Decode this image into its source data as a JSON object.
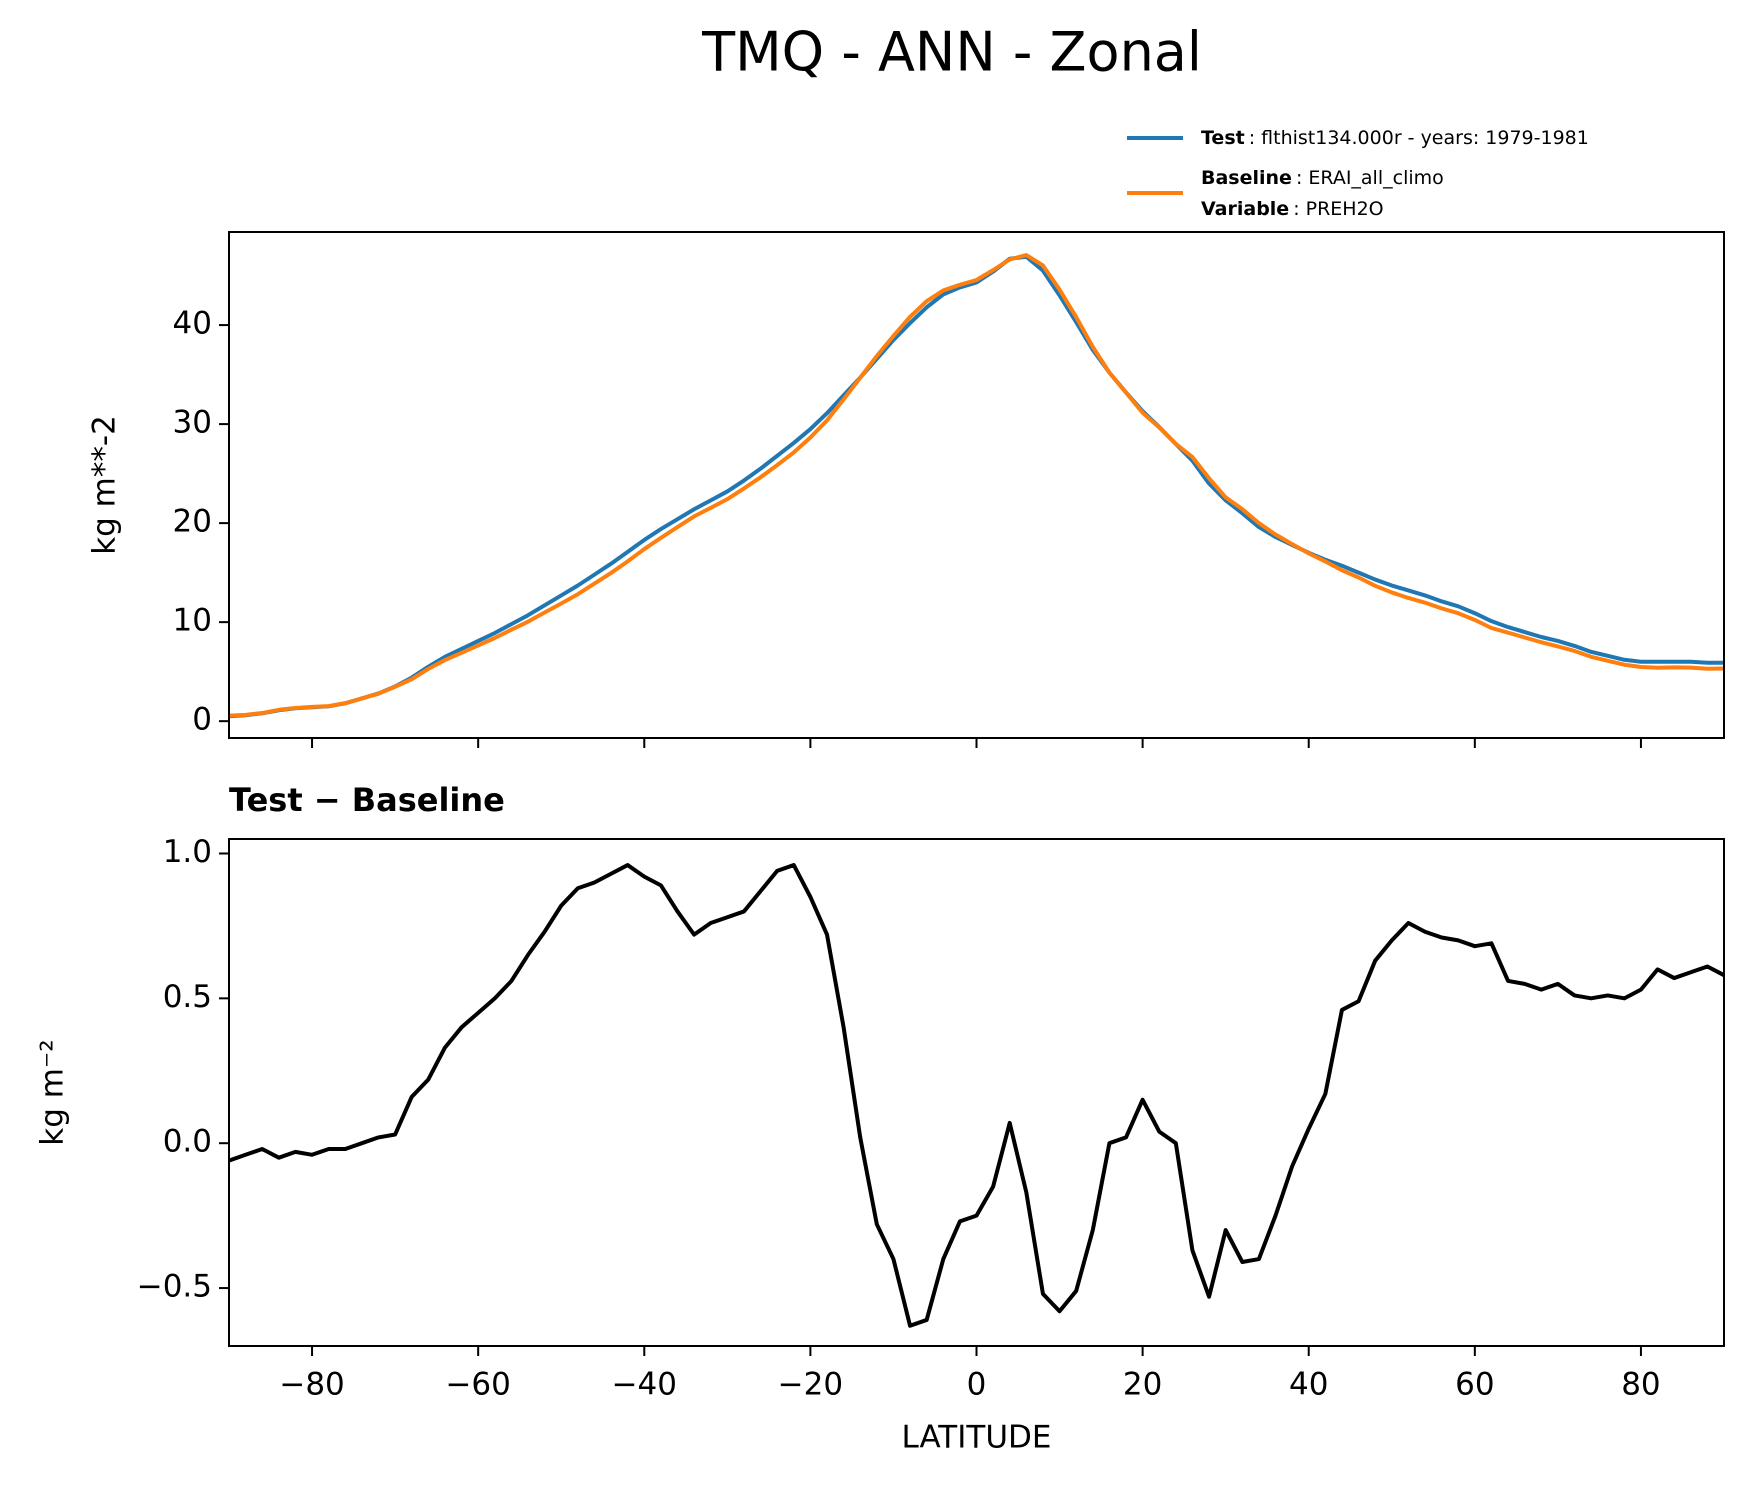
{
  "title": "TMQ - ANN - Zonal",
  "chart_data": [
    {
      "type": "line",
      "ylabel": "kg m**-2",
      "x": [
        -90,
        -88,
        -86,
        -84,
        -82,
        -80,
        -78,
        -76,
        -74,
        -72,
        -70,
        -68,
        -66,
        -64,
        -62,
        -60,
        -58,
        -56,
        -54,
        -52,
        -50,
        -48,
        -46,
        -44,
        -42,
        -40,
        -38,
        -36,
        -34,
        -32,
        -30,
        -28,
        -26,
        -24,
        -22,
        -20,
        -18,
        -16,
        -14,
        -12,
        -10,
        -8,
        -6,
        -4,
        -2,
        0,
        2,
        4,
        6,
        8,
        10,
        12,
        14,
        16,
        18,
        20,
        22,
        24,
        26,
        28,
        30,
        32,
        34,
        36,
        38,
        40,
        42,
        44,
        46,
        48,
        50,
        52,
        54,
        56,
        58,
        60,
        62,
        64,
        66,
        68,
        70,
        72,
        74,
        76,
        78,
        80,
        82,
        84,
        86,
        88,
        90
      ],
      "series": [
        {
          "name": "Test",
          "detail": ": flthist134.000r - years: 1979-1981",
          "color": "#1f77b4",
          "values": [
            0.5,
            0.6,
            0.8,
            1.1,
            1.3,
            1.4,
            1.5,
            1.8,
            2.3,
            2.8,
            3.5,
            4.4,
            5.5,
            6.5,
            7.3,
            8.1,
            8.9,
            9.8,
            10.7,
            11.7,
            12.7,
            13.7,
            14.8,
            15.9,
            17.1,
            18.3,
            19.4,
            20.4,
            21.4,
            22.3,
            23.2,
            24.3,
            25.5,
            26.8,
            28.1,
            29.5,
            31.1,
            32.9,
            34.7,
            36.6,
            38.5,
            40.2,
            41.8,
            43.1,
            43.8,
            44.3,
            45.4,
            46.7,
            46.9,
            45.5,
            43.0,
            40.3,
            37.5,
            35.2,
            33.2,
            31.3,
            29.7,
            28.0,
            26.3,
            24.0,
            22.3,
            21.0,
            19.6,
            18.6,
            17.8,
            17.0,
            16.3,
            15.7,
            15.0,
            14.3,
            13.7,
            13.2,
            12.7,
            12.1,
            11.6,
            10.9,
            10.1,
            9.5,
            9.0,
            8.5,
            8.1,
            7.6,
            7.0,
            6.6,
            6.2,
            6.0,
            6.0,
            6.0,
            6.0,
            5.9,
            5.9
          ]
        },
        {
          "name": "Baseline",
          "detail": ": ERAI_all_climo",
          "extra_name": "Variable",
          "extra_detail": ": PREH2O",
          "color": "#ff7f0e",
          "values": [
            0.56,
            0.64,
            0.82,
            1.15,
            1.33,
            1.44,
            1.52,
            1.82,
            2.3,
            2.78,
            3.47,
            4.24,
            5.28,
            6.17,
            6.9,
            7.65,
            8.4,
            9.24,
            10.05,
            10.97,
            11.88,
            12.82,
            13.9,
            14.97,
            16.14,
            17.38,
            18.51,
            19.6,
            20.68,
            21.54,
            22.42,
            23.5,
            24.63,
            25.86,
            27.14,
            28.65,
            30.38,
            32.5,
            34.68,
            36.88,
            38.9,
            40.83,
            42.41,
            43.5,
            44.07,
            44.55,
            45.55,
            46.63,
            47.07,
            46.02,
            43.58,
            40.81,
            37.8,
            35.2,
            33.18,
            31.15,
            29.66,
            28.0,
            26.67,
            24.53,
            22.6,
            21.41,
            20.0,
            18.85,
            17.88,
            16.95,
            16.13,
            15.24,
            14.51,
            13.67,
            13.0,
            12.44,
            11.97,
            11.39,
            10.9,
            10.22,
            9.41,
            8.94,
            8.45,
            7.97,
            7.55,
            7.09,
            6.5,
            6.09,
            5.7,
            5.47,
            5.4,
            5.43,
            5.41,
            5.29,
            5.32
          ]
        }
      ],
      "xlim": [
        -90,
        90
      ],
      "xticks": [
        -80,
        -60,
        -40,
        -20,
        0,
        20,
        40,
        60,
        80
      ],
      "show_xtick_labels": false,
      "ylim": [
        -1.7,
        49.4
      ],
      "yticks": [
        0,
        10,
        20,
        30,
        40
      ],
      "legend": "upper right outside",
      "grid": false
    },
    {
      "type": "line",
      "title": "Test − Baseline",
      "ylabel": "kg m⁻²",
      "xlabel": "LATITUDE",
      "x": [
        -90,
        -88,
        -86,
        -84,
        -82,
        -80,
        -78,
        -76,
        -74,
        -72,
        -70,
        -68,
        -66,
        -64,
        -62,
        -60,
        -58,
        -56,
        -54,
        -52,
        -50,
        -48,
        -46,
        -44,
        -42,
        -40,
        -38,
        -36,
        -34,
        -32,
        -30,
        -28,
        -26,
        -24,
        -22,
        -20,
        -18,
        -16,
        -14,
        -12,
        -10,
        -8,
        -6,
        -4,
        -2,
        0,
        2,
        4,
        6,
        8,
        10,
        12,
        14,
        16,
        18,
        20,
        22,
        24,
        26,
        28,
        30,
        32,
        34,
        36,
        38,
        40,
        42,
        44,
        46,
        48,
        50,
        52,
        54,
        56,
        58,
        60,
        62,
        64,
        66,
        68,
        70,
        72,
        74,
        76,
        78,
        80,
        82,
        84,
        86,
        88,
        90
      ],
      "series": [
        {
          "color": "#000000",
          "values": [
            -0.06,
            -0.04,
            -0.02,
            -0.05,
            -0.03,
            -0.04,
            -0.02,
            -0.02,
            0.0,
            0.02,
            0.03,
            0.16,
            0.22,
            0.33,
            0.4,
            0.45,
            0.5,
            0.56,
            0.65,
            0.73,
            0.82,
            0.88,
            0.9,
            0.93,
            0.96,
            0.92,
            0.89,
            0.8,
            0.72,
            0.76,
            0.78,
            0.8,
            0.87,
            0.94,
            0.96,
            0.85,
            0.72,
            0.4,
            0.02,
            -0.28,
            -0.4,
            -0.63,
            -0.61,
            -0.4,
            -0.27,
            -0.25,
            -0.15,
            0.07,
            -0.17,
            -0.52,
            -0.58,
            -0.51,
            -0.3,
            0.0,
            0.02,
            0.15,
            0.04,
            0.0,
            -0.37,
            -0.53,
            -0.3,
            -0.41,
            -0.4,
            -0.25,
            -0.08,
            0.05,
            0.17,
            0.46,
            0.49,
            0.63,
            0.7,
            0.76,
            0.73,
            0.71,
            0.7,
            0.68,
            0.69,
            0.56,
            0.55,
            0.53,
            0.55,
            0.51,
            0.5,
            0.51,
            0.5,
            0.53,
            0.6,
            0.57,
            0.59,
            0.61,
            0.58
          ]
        }
      ],
      "xlim": [
        -90,
        90
      ],
      "xticks": [
        {
          "value": -80,
          "label": "−80"
        },
        {
          "value": -60,
          "label": "−60"
        },
        {
          "value": -40,
          "label": "−40"
        },
        {
          "value": -20,
          "label": "−20"
        },
        0,
        20,
        40,
        60,
        80
      ],
      "show_xtick_labels": true,
      "ylim": [
        -0.7,
        1.05
      ],
      "yticks": [
        {
          "value": -0.5,
          "label": "−0.5"
        },
        {
          "value": 0,
          "label": "0.0"
        },
        0.5,
        {
          "value": 1,
          "label": "1.0"
        }
      ],
      "grid": false
    }
  ]
}
